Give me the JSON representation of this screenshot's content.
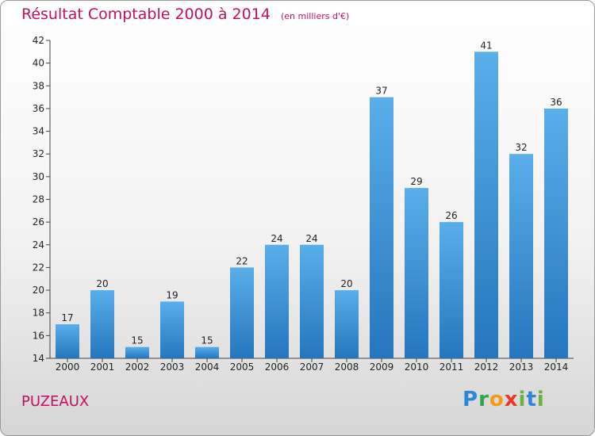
{
  "header": {
    "title": "Résultat Comptable 2000 à 2014",
    "unit": "(en milliers d'€)"
  },
  "footer": {
    "place": "PUZEAUX",
    "logo_text": [
      "P",
      "r",
      "o",
      "x",
      "i",
      "t",
      "i"
    ]
  },
  "colors": {
    "bar": "#2e87d6",
    "title": "#c01060"
  },
  "chart_data": {
    "type": "bar",
    "title": "Résultat Comptable 2000 à 2014",
    "xlabel": "",
    "ylabel": "",
    "categories": [
      "2000",
      "2001",
      "2002",
      "2003",
      "2004",
      "2005",
      "2006",
      "2007",
      "2008",
      "2009",
      "2010",
      "2011",
      "2012",
      "2013",
      "2014"
    ],
    "values": [
      17,
      20,
      15,
      19,
      15,
      22,
      24,
      24,
      20,
      37,
      29,
      26,
      41,
      32,
      36
    ],
    "ylim": [
      14,
      42
    ],
    "yticks": [
      14,
      16,
      18,
      20,
      22,
      24,
      26,
      28,
      30,
      32,
      34,
      36,
      38,
      40,
      42
    ],
    "grid": false,
    "legend": "none",
    "data_labels": true
  }
}
